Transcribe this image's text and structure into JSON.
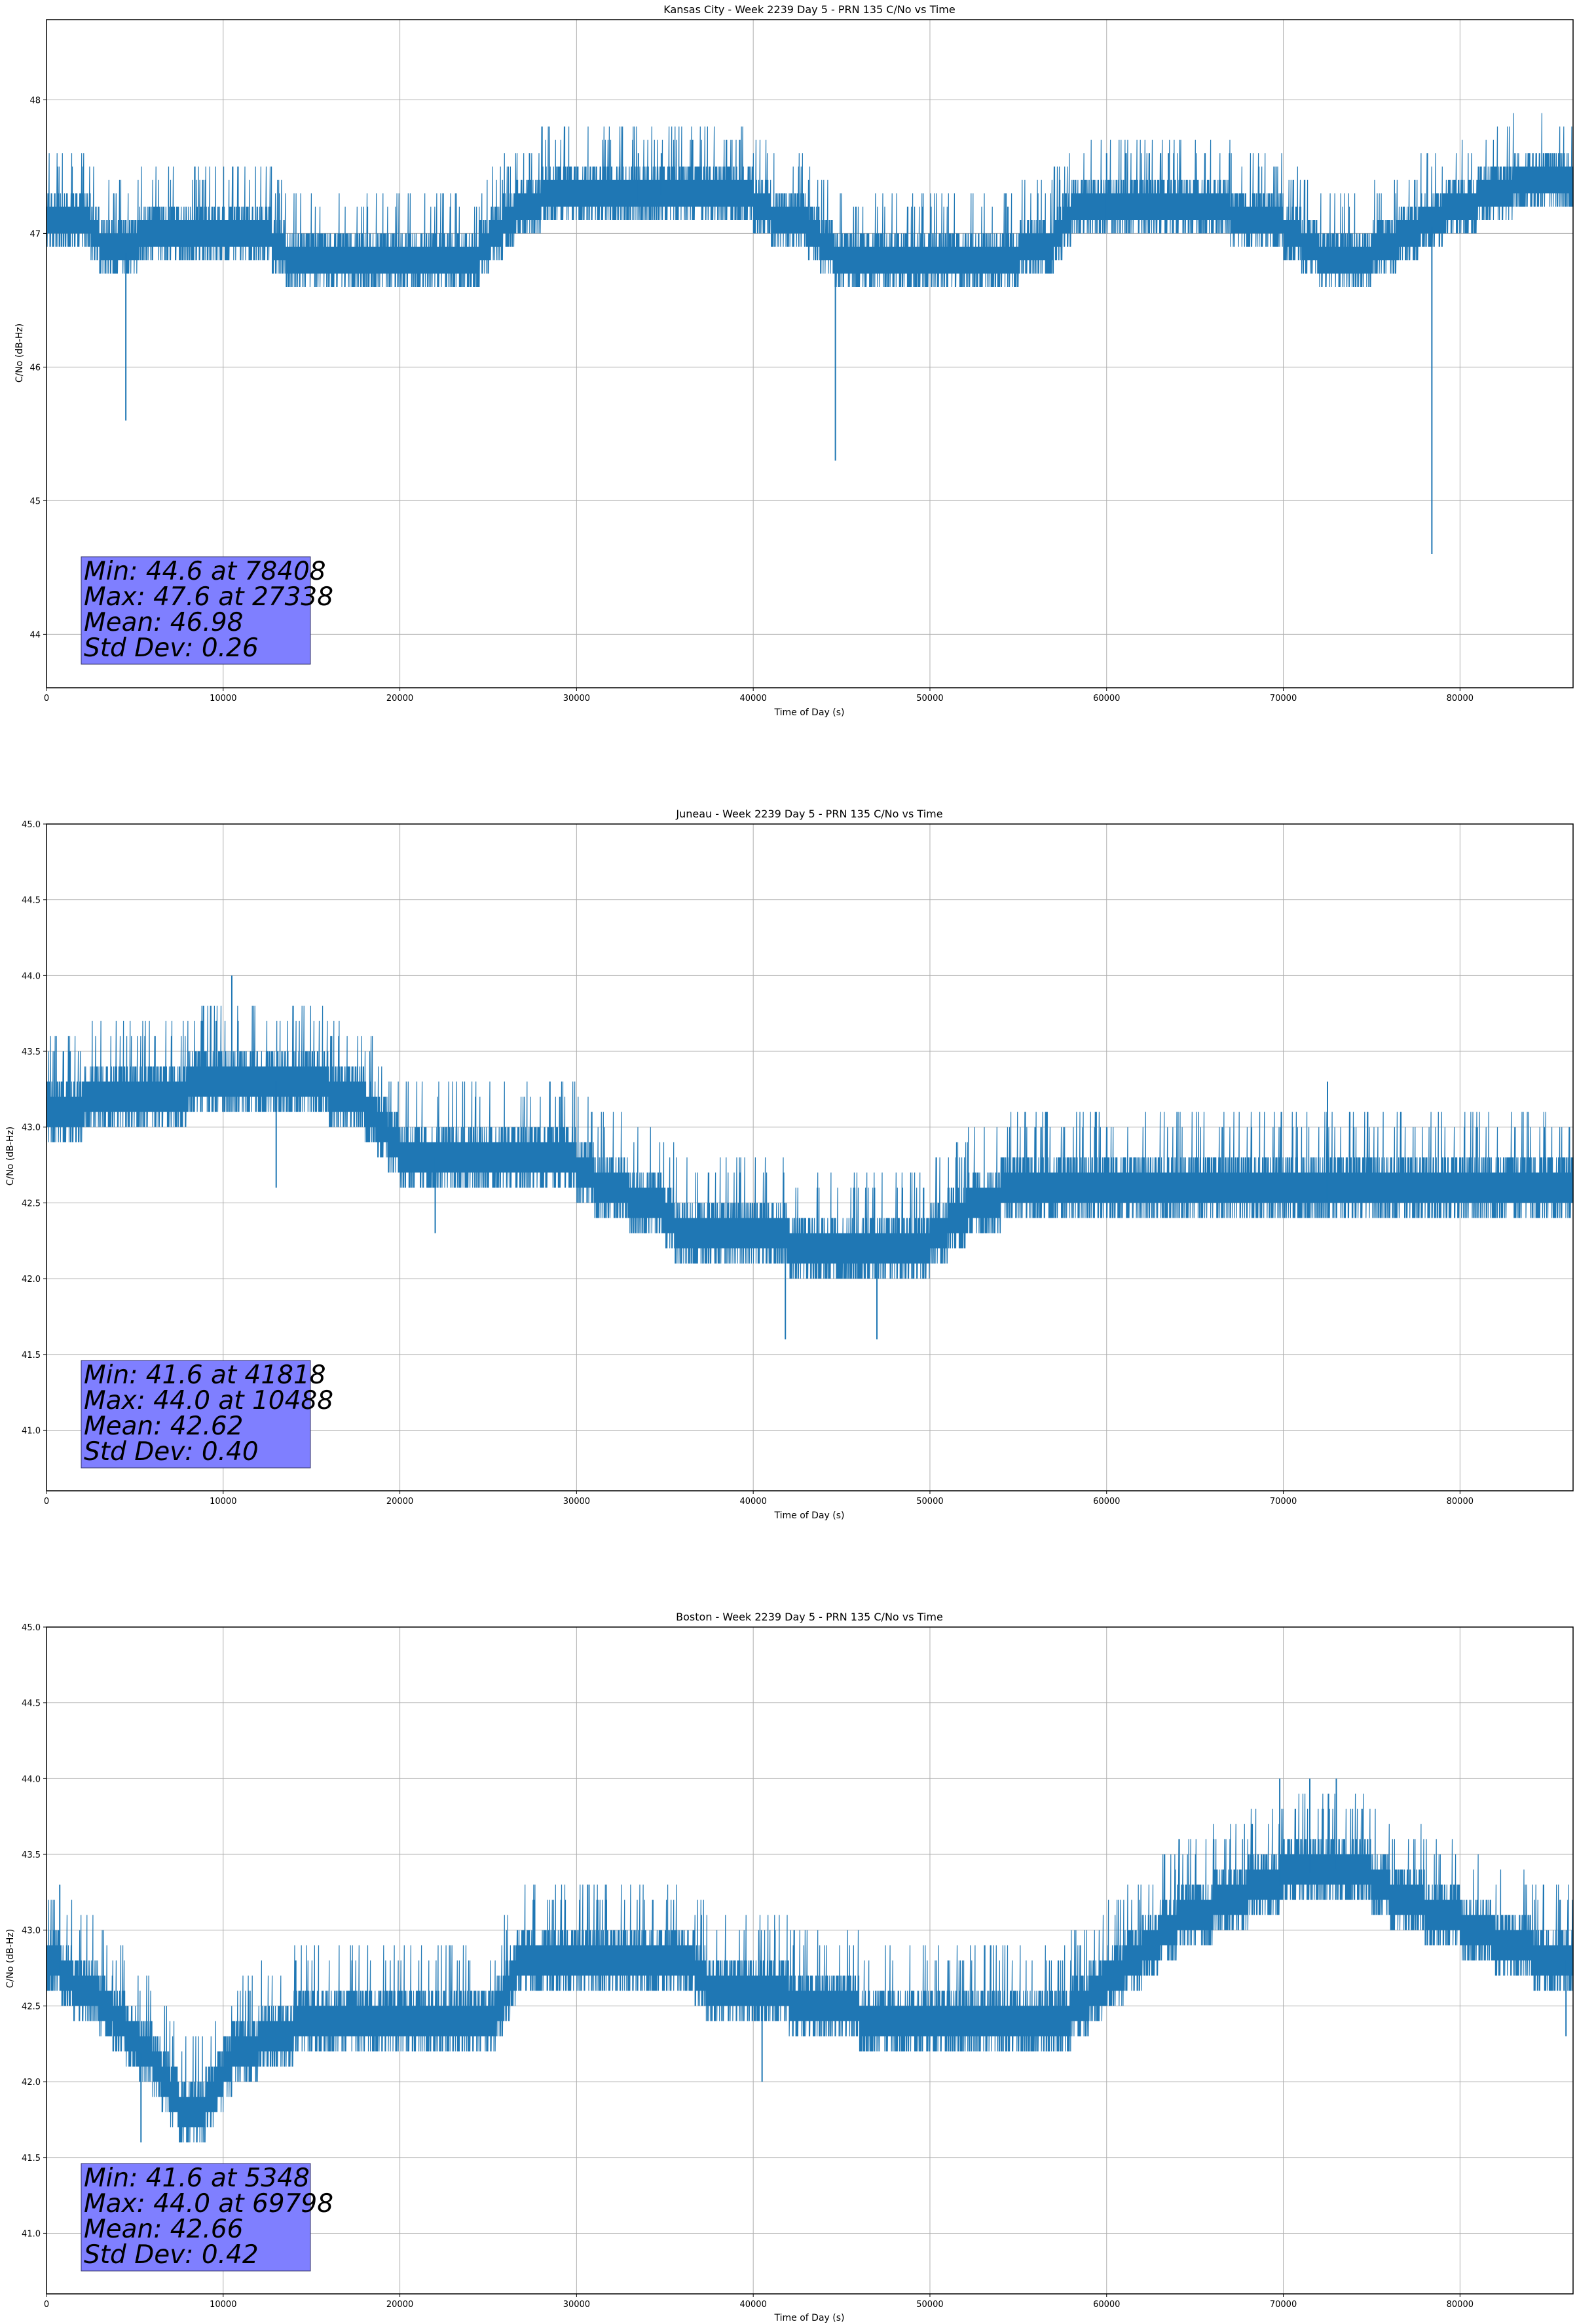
{
  "chart_data": [
    {
      "type": "line",
      "title": "Kansas City - Week 2239 Day 5 - PRN 135 C/No vs Time",
      "xlabel": "Time of Day (s)",
      "ylabel": "C/No (dB-Hz)",
      "xlim": [
        0,
        86400
      ],
      "ylim": [
        43.6,
        48.6
      ],
      "xticks": [
        0,
        10000,
        20000,
        30000,
        40000,
        50000,
        60000,
        70000,
        80000
      ],
      "yticks": [
        44,
        45,
        46,
        47,
        48
      ],
      "ytick_labels": [
        "44",
        "45",
        "46",
        "47",
        "48"
      ],
      "grid": true,
      "color": "#1f77b4",
      "stats": [
        "Min: 44.6 at 78408",
        "Max: 47.6 at 27338",
        "Mean: 46.98",
        "Std Dev: 0.26"
      ],
      "series": [
        {
          "x": [
            0,
            2500,
            3500,
            7000,
            9000,
            12000,
            13500,
            16000,
            20000,
            22000,
            24500,
            26500,
            28000,
            31000,
            33000,
            35000,
            38000,
            40000,
            41000,
            43000,
            44500,
            47000,
            50000,
            53000,
            55000,
            57000,
            58000,
            61000,
            64000,
            67000,
            70000,
            72000,
            75000,
            76500,
            79000,
            81000,
            83000,
            86400
          ],
          "y": [
            47.1,
            47.0,
            46.8,
            47.0,
            46.9,
            47.0,
            46.8,
            46.8,
            46.8,
            46.7,
            46.8,
            47.1,
            47.2,
            47.2,
            47.2,
            47.3,
            47.2,
            47.2,
            47.1,
            47.0,
            46.8,
            46.8,
            46.8,
            46.8,
            46.8,
            46.9,
            47.1,
            47.1,
            47.2,
            47.1,
            47.0,
            46.8,
            46.8,
            46.9,
            47.1,
            47.2,
            47.3,
            47.4
          ]
        }
      ],
      "spikes": [
        {
          "x": 4490,
          "y": 45.6
        },
        {
          "x": 44650,
          "y": 45.3
        },
        {
          "x": 78408,
          "y": 44.6
        },
        {
          "x": 27338,
          "y": 47.6
        },
        {
          "x": 33500,
          "y": 47.6
        },
        {
          "x": 34800,
          "y": 47.6
        },
        {
          "x": 60000,
          "y": 47.6
        },
        {
          "x": 63500,
          "y": 47.6
        }
      ]
    },
    {
      "type": "line",
      "title": "Juneau - Week 2239 Day 5 - PRN 135 C/No vs Time",
      "xlabel": "Time of Day (s)",
      "ylabel": "C/No (dB-Hz)",
      "xlim": [
        0,
        86400
      ],
      "ylim": [
        40.6,
        45.0
      ],
      "xticks": [
        0,
        10000,
        20000,
        30000,
        40000,
        50000,
        60000,
        70000,
        80000
      ],
      "yticks": [
        41.0,
        41.5,
        42.0,
        42.5,
        43.0,
        43.5,
        44.0,
        44.5,
        45.0
      ],
      "ytick_labels": [
        "41.0",
        "41.5",
        "42.0",
        "42.5",
        "43.0",
        "43.5",
        "44.0",
        "44.5",
        "45.0"
      ],
      "grid": true,
      "color": "#1f77b4",
      "stats": [
        "Min: 41.6 at 41818",
        "Max: 44.0 at 10488",
        "Mean: 42.62",
        "Std Dev: 0.40"
      ],
      "series": [
        {
          "x": [
            0,
            2000,
            4000,
            6000,
            8000,
            10000,
            12000,
            14000,
            16000,
            18000,
            20000,
            23000,
            26000,
            29000,
            31000,
            33000,
            35000,
            36000,
            39000,
            42000,
            45000,
            48000,
            50000,
            52000,
            54000,
            58000,
            62000,
            66000,
            70000,
            74000,
            78000,
            82000,
            86400
          ],
          "y": [
            43.0,
            43.1,
            43.1,
            43.1,
            43.2,
            43.3,
            43.3,
            43.3,
            43.2,
            43.1,
            42.8,
            42.8,
            42.8,
            42.8,
            42.6,
            42.5,
            42.4,
            42.2,
            42.2,
            42.2,
            42.1,
            42.1,
            42.2,
            42.4,
            42.5,
            42.5,
            42.5,
            42.5,
            42.5,
            42.5,
            42.5,
            42.5,
            42.5
          ]
        }
      ],
      "spikes": [
        {
          "x": 10488,
          "y": 44.0
        },
        {
          "x": 41818,
          "y": 41.6
        },
        {
          "x": 47000,
          "y": 41.6
        },
        {
          "x": 72500,
          "y": 43.3
        },
        {
          "x": 13000,
          "y": 42.6
        },
        {
          "x": 22000,
          "y": 42.3
        }
      ]
    },
    {
      "type": "line",
      "title": "Boston - Week 2239 Day 5 - PRN 135 C/No vs Time",
      "xlabel": "Time of Day (s)",
      "ylabel": "C/No (dB-Hz)",
      "xlim": [
        0,
        86400
      ],
      "ylim": [
        40.6,
        45.0
      ],
      "xticks": [
        0,
        10000,
        20000,
        30000,
        40000,
        50000,
        60000,
        70000,
        80000
      ],
      "yticks": [
        41.0,
        41.5,
        42.0,
        42.5,
        43.0,
        43.5,
        44.0,
        44.5,
        45.0
      ],
      "ytick_labels": [
        "41.0",
        "41.5",
        "42.0",
        "42.5",
        "43.0",
        "43.5",
        "44.0",
        "44.5",
        "45.0"
      ],
      "grid": true,
      "color": "#1f77b4",
      "stats": [
        "Min: 41.6 at 5348",
        "Max: 44.0 at 69798",
        "Mean: 42.66",
        "Std Dev: 0.42"
      ],
      "series": [
        {
          "x": [
            0,
            1500,
            3000,
            4500,
            6000,
            7500,
            9000,
            10500,
            12000,
            14000,
            17000,
            20000,
            23000,
            25500,
            27000,
            30000,
            33000,
            36000,
            38000,
            42000,
            46000,
            50000,
            54000,
            58000,
            60000,
            62000,
            64000,
            66000,
            68000,
            70000,
            72000,
            74000,
            76000,
            78000,
            80000,
            82000,
            84000,
            86400
          ],
          "y": [
            42.8,
            42.6,
            42.5,
            42.3,
            42.1,
            41.8,
            41.8,
            42.1,
            42.2,
            42.3,
            42.4,
            42.4,
            42.4,
            42.4,
            42.8,
            42.8,
            42.8,
            42.8,
            42.5,
            42.5,
            42.4,
            42.4,
            42.4,
            42.4,
            42.6,
            42.8,
            43.0,
            43.1,
            43.2,
            43.3,
            43.4,
            43.4,
            43.2,
            43.1,
            43.0,
            42.9,
            42.8,
            42.8
          ]
        }
      ],
      "spikes": [
        {
          "x": 5348,
          "y": 41.6
        },
        {
          "x": 69798,
          "y": 44.0
        },
        {
          "x": 71500,
          "y": 44.0
        },
        {
          "x": 73000,
          "y": 44.0
        },
        {
          "x": 750,
          "y": 43.3
        },
        {
          "x": 40500,
          "y": 42.0
        },
        {
          "x": 86000,
          "y": 42.3
        }
      ]
    }
  ]
}
